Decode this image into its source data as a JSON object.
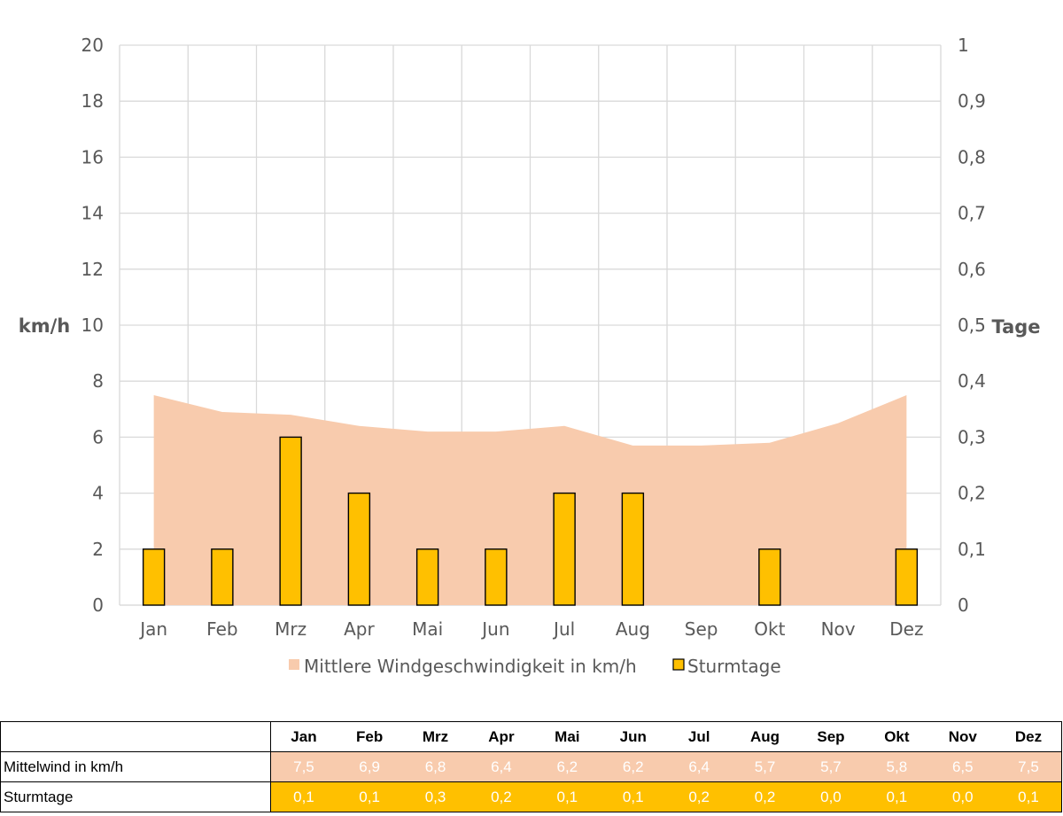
{
  "chart_data": {
    "type": "area+bar",
    "categories": [
      "Jan",
      "Feb",
      "Mrz",
      "Apr",
      "Mai",
      "Jun",
      "Jul",
      "Aug",
      "Sep",
      "Okt",
      "Nov",
      "Dez"
    ],
    "series": [
      {
        "name": "Mittlere Windgeschwindigkeit in km/h",
        "type": "area",
        "axis": "left",
        "color": "#f8cbad",
        "values": [
          7.5,
          6.9,
          6.8,
          6.4,
          6.2,
          6.2,
          6.4,
          5.7,
          5.7,
          5.8,
          6.5,
          7.5
        ]
      },
      {
        "name": "Sturmtage",
        "type": "bar",
        "axis": "right",
        "color": "#ffc000",
        "values": [
          0.1,
          0.1,
          0.3,
          0.2,
          0.1,
          0.1,
          0.2,
          0.2,
          0.0,
          0.1,
          0.0,
          0.1
        ]
      }
    ],
    "ylabel_left": "km/h",
    "ylabel_right": "Tage",
    "ylim_left": [
      0,
      20
    ],
    "ylim_right": [
      0,
      1
    ],
    "yticks_left": [
      "0",
      "2",
      "4",
      "6",
      "8",
      "10",
      "12",
      "14",
      "16",
      "18",
      "20"
    ],
    "yticks_right": [
      "0",
      "0,1",
      "0,2",
      "0,3",
      "0,4",
      "0,5",
      "0,6",
      "0,7",
      "0,8",
      "0,9",
      "1"
    ],
    "grid": true,
    "legend_position": "bottom"
  },
  "table": {
    "headers": [
      "Jan",
      "Feb",
      "Mrz",
      "Apr",
      "Mai",
      "Jun",
      "Jul",
      "Aug",
      "Sep",
      "Okt",
      "Nov",
      "Dez"
    ],
    "rows": [
      {
        "label": "Mittelwind in km/h",
        "values": [
          "7,5",
          "6,9",
          "6,8",
          "6,4",
          "6,2",
          "6,2",
          "6,4",
          "5,7",
          "5,7",
          "5,8",
          "6,5",
          "7,5"
        ]
      },
      {
        "label": "Sturmtage",
        "values": [
          "0,1",
          "0,1",
          "0,3",
          "0,2",
          "0,1",
          "0,1",
          "0,2",
          "0,2",
          "0,0",
          "0,1",
          "0,0",
          "0,1"
        ]
      }
    ]
  }
}
